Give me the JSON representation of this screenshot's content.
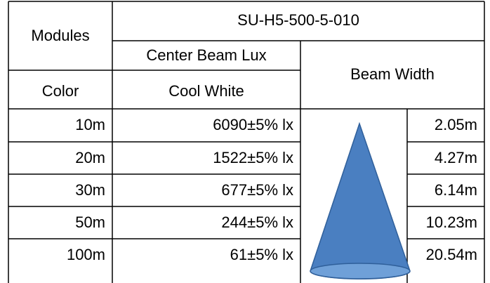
{
  "header": {
    "modules": "Modules",
    "product": "SU-H5-500-5-010",
    "center_beam_lux": "Center Beam Lux",
    "beam_width": "Beam Width",
    "color": "Color",
    "cool_white": "Cool White"
  },
  "table": {
    "rows": [
      [
        "10m",
        "6090±5% lx",
        "2.05m"
      ],
      [
        "20m",
        "1522±5% lx",
        "4.27m"
      ],
      [
        "30m",
        "677±5% lx",
        "6.14m"
      ],
      [
        "50m",
        "244±5% lx",
        "10.23m"
      ],
      [
        "100m",
        "61±5% lx",
        "20.54m"
      ]
    ]
  }
}
